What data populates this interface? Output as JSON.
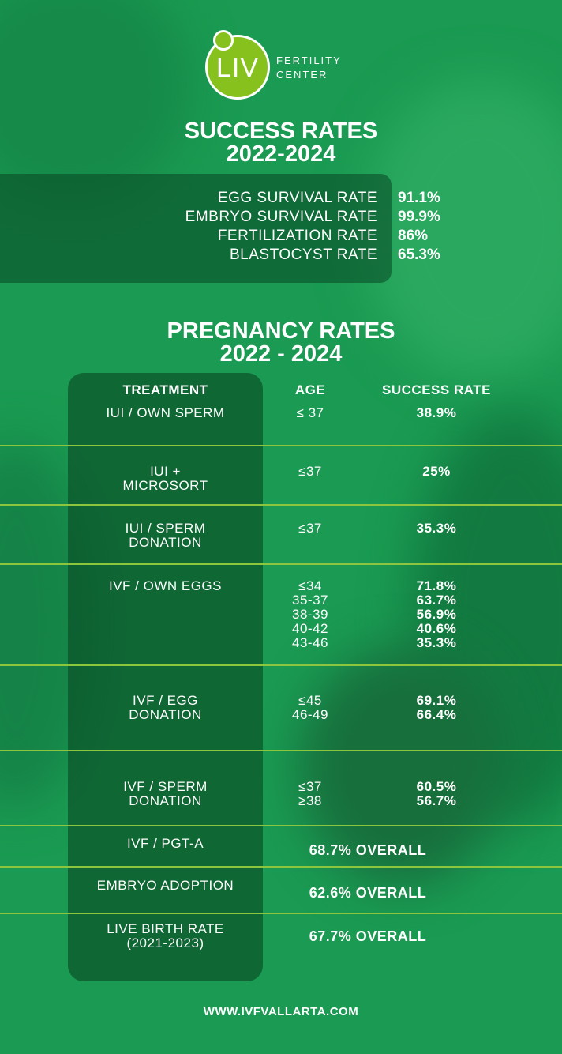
{
  "logo": {
    "mark": "LIV",
    "line1": "FERTILITY",
    "line2": "CENTER"
  },
  "success": {
    "title_line1": "SUCCESS RATES",
    "title_line2": "2022-2024",
    "rows": [
      {
        "label": "EGG SURVIVAL RATE",
        "value": "91.1%"
      },
      {
        "label": "EMBRYO SURVIVAL RATE",
        "value": "99.9%"
      },
      {
        "label": "FERTILIZATION RATE",
        "value": "86%"
      },
      {
        "label": "BLASTOCYST RATE",
        "value": "65.3%"
      }
    ]
  },
  "pregnancy": {
    "title_line1": "PREGNANCY RATES",
    "title_line2": "2022 - 2024",
    "headers": {
      "treatment": "TREATMENT",
      "age": "AGE",
      "rate": "SUCCESS RATE"
    },
    "rows": [
      {
        "treatment": [
          "IUI / OWN SPERM"
        ],
        "ages": [
          "≤ 37"
        ],
        "rates": [
          "38.9%"
        ]
      },
      {
        "treatment": [
          "IUI +",
          "MICROSORT"
        ],
        "ages": [
          "≤37"
        ],
        "rates": [
          "25%"
        ]
      },
      {
        "treatment": [
          "IUI / SPERM",
          "DONATION"
        ],
        "ages": [
          "≤37"
        ],
        "rates": [
          "35.3%"
        ]
      },
      {
        "treatment": [
          "IVF / OWN EGGS"
        ],
        "ages": [
          "≤34",
          "35-37",
          "38-39",
          "40-42",
          "43-46"
        ],
        "rates": [
          "71.8%",
          "63.7%",
          "56.9%",
          "40.6%",
          "35.3%"
        ]
      },
      {
        "treatment": [
          "IVF / EGG",
          "DONATION"
        ],
        "ages": [
          "≤45",
          "46-49"
        ],
        "rates": [
          "69.1%",
          "66.4%"
        ]
      },
      {
        "treatment": [
          "IVF / SPERM",
          "DONATION"
        ],
        "ages": [
          "≤37",
          "≥38"
        ],
        "rates": [
          "60.5%",
          "56.7%"
        ]
      },
      {
        "treatment": [
          "IVF / PGT-A"
        ],
        "overall": "68.7% OVERALL"
      },
      {
        "treatment": [
          "EMBRYO ADOPTION"
        ],
        "overall": "62.6% OVERALL"
      },
      {
        "treatment": [
          "LIVE BIRTH RATE",
          "(2021-2023)"
        ],
        "overall": "67.7% OVERALL"
      }
    ]
  },
  "footer": {
    "url": "WWW.IVFVALLARTA.COM"
  },
  "colors": {
    "background": "#1a9a52",
    "panel": "#0c4a26",
    "divider": "#8cc63f",
    "logo_green": "#86c11d"
  }
}
